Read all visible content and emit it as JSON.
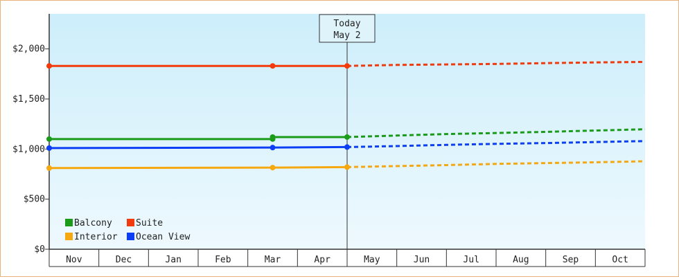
{
  "chart_data": {
    "type": "line",
    "y_ticks": [
      "$0",
      "$500",
      "$1,000",
      "$1,500",
      "$2,000"
    ],
    "y_tick_values": [
      0,
      500,
      1000,
      1500,
      2000
    ],
    "ylim": [
      0,
      2350
    ],
    "months": [
      "Nov",
      "Dec",
      "Jan",
      "Feb",
      "Mar",
      "Apr",
      "May",
      "Jun",
      "Jul",
      "Aug",
      "Sep",
      "Oct"
    ],
    "today_label": [
      "Today",
      "May 2"
    ],
    "today_month_position": 6.0,
    "background": {
      "top": "#cdeefb",
      "bottom": "#eef9fe"
    },
    "legend_position": "bottom-left",
    "legend": [
      {
        "name": "Balcony",
        "color": "#1a9b1a"
      },
      {
        "name": "Suite",
        "color": "#f23a0c"
      },
      {
        "name": "Interior",
        "color": "#f5a80f"
      },
      {
        "name": "Ocean View",
        "color": "#0b3ef5"
      }
    ],
    "series": [
      {
        "name": "Suite",
        "color": "#f23a0c",
        "actual": [
          [
            0,
            1830
          ],
          [
            4.5,
            1830
          ],
          [
            6.0,
            1830
          ]
        ],
        "forecast": [
          [
            6.0,
            1830
          ],
          [
            7,
            1840
          ],
          [
            8,
            1845
          ],
          [
            9,
            1850
          ],
          [
            10,
            1858
          ],
          [
            11,
            1865
          ],
          [
            12,
            1870
          ]
        ]
      },
      {
        "name": "Balcony",
        "color": "#1a9b1a",
        "actual": [
          [
            0,
            1100
          ],
          [
            4.5,
            1100
          ],
          [
            4.5,
            1120
          ],
          [
            6.0,
            1120
          ]
        ],
        "forecast": [
          [
            6.0,
            1120
          ],
          [
            7,
            1135
          ],
          [
            8,
            1150
          ],
          [
            9,
            1160
          ],
          [
            10,
            1172
          ],
          [
            11,
            1185
          ],
          [
            12,
            1198
          ]
        ]
      },
      {
        "name": "Ocean View",
        "color": "#0b3ef5",
        "actual": [
          [
            0,
            1010
          ],
          [
            4.5,
            1015
          ],
          [
            6.0,
            1020
          ]
        ],
        "forecast": [
          [
            6.0,
            1020
          ],
          [
            7,
            1030
          ],
          [
            8,
            1042
          ],
          [
            9,
            1052
          ],
          [
            10,
            1060
          ],
          [
            11,
            1070
          ],
          [
            12,
            1080
          ]
        ]
      },
      {
        "name": "Interior",
        "color": "#f5a80f",
        "actual": [
          [
            0,
            810
          ],
          [
            4.5,
            815
          ],
          [
            6.0,
            820
          ]
        ],
        "forecast": [
          [
            6.0,
            820
          ],
          [
            7,
            830
          ],
          [
            8,
            840
          ],
          [
            9,
            852
          ],
          [
            10,
            860
          ],
          [
            11,
            868
          ],
          [
            12,
            878
          ]
        ]
      }
    ]
  }
}
